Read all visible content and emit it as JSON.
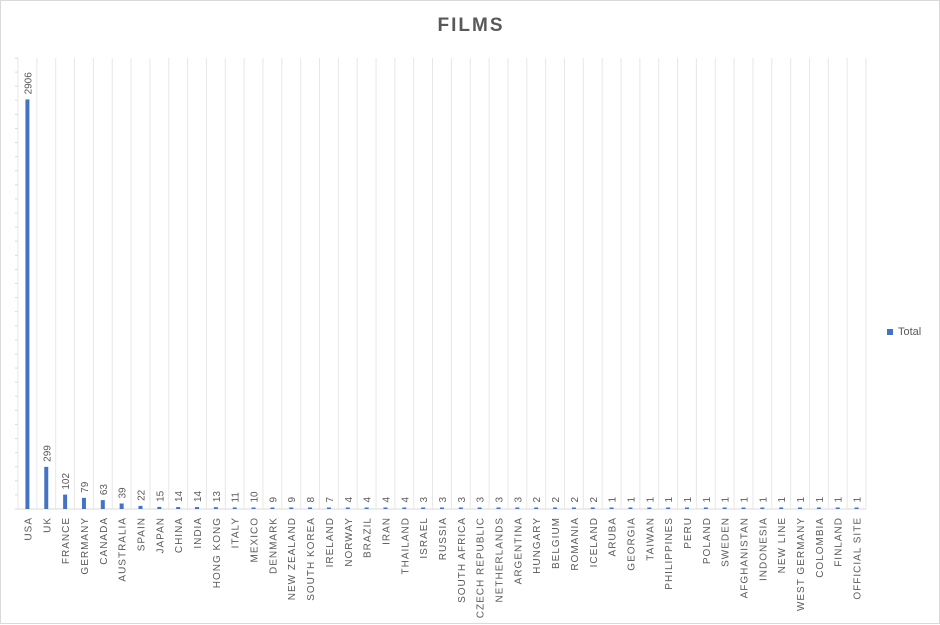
{
  "chart_data": {
    "type": "bar",
    "title": "FILMS",
    "xlabel": "",
    "ylabel": "",
    "ylim": [
      0,
      3200
    ],
    "legend_position": "right",
    "grid": true,
    "bar_color": "#4472c4",
    "categories": [
      "USA",
      "UK",
      "FRANCE",
      "GERMANY",
      "CANADA",
      "AUSTRALIA",
      "SPAIN",
      "JAPAN",
      "CHINA",
      "INDIA",
      "HONG KONG",
      "ITALY",
      "MEXICO",
      "DENMARK",
      "NEW ZEALAND",
      "SOUTH KOREA",
      "IRELAND",
      "NORWAY",
      "BRAZIL",
      "IRAN",
      "THAILAND",
      "ISRAEL",
      "RUSSIA",
      "SOUTH AFRICA",
      "CZECH REPUBLIC",
      "NETHERLANDS",
      "ARGENTINA",
      "HUNGARY",
      "BELGIUM",
      "ROMANIA",
      "ICELAND",
      "ARUBA",
      "GEORGIA",
      "TAIWAN",
      "PHILIPPINES",
      "PERU",
      "POLAND",
      "SWEDEN",
      "AFGHANISTAN",
      "INDONESIA",
      "NEW LINE",
      "WEST GERMANY",
      "COLOMBIA",
      "FINLAND",
      "OFFICIAL SITE"
    ],
    "series": [
      {
        "name": "Total",
        "values": [
          2906,
          299,
          102,
          79,
          63,
          39,
          22,
          15,
          14,
          14,
          13,
          11,
          10,
          9,
          9,
          8,
          7,
          4,
          4,
          4,
          4,
          3,
          3,
          3,
          3,
          3,
          3,
          2,
          2,
          2,
          2,
          1,
          1,
          1,
          1,
          1,
          1,
          1,
          1,
          1,
          1,
          1,
          1,
          1,
          1
        ]
      }
    ]
  }
}
